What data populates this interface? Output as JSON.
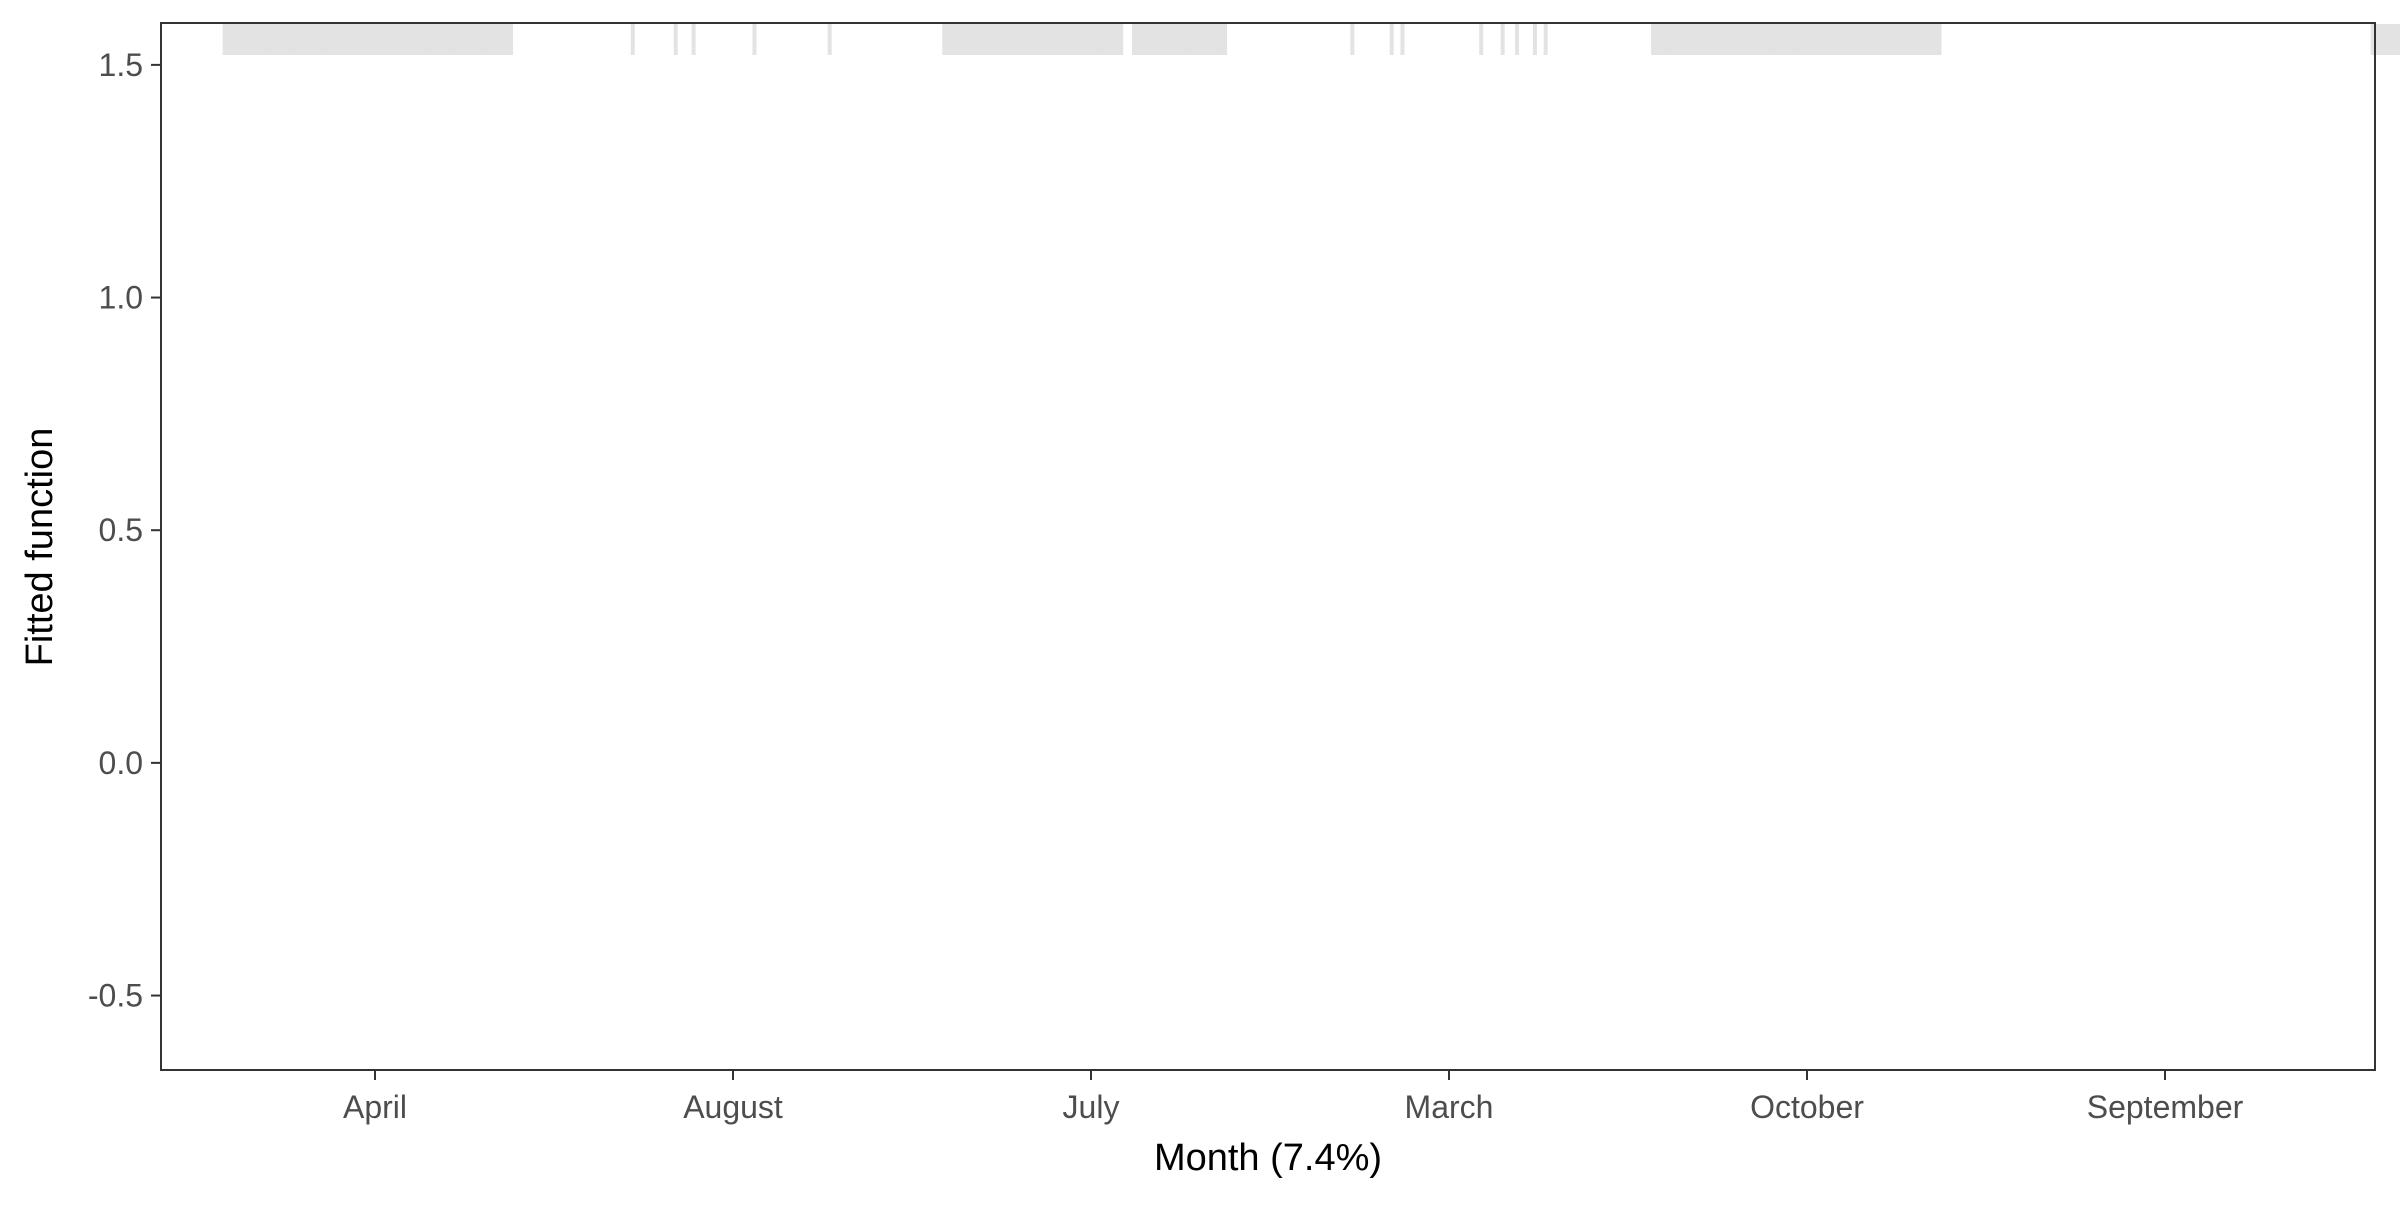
{
  "chart_data": {
    "type": "bar",
    "title": "",
    "xlabel": "Month  (7.4%)",
    "ylabel": "Fitted function",
    "categories": [
      "April",
      "August",
      "July",
      "March",
      "October",
      "September"
    ],
    "values": [
      0,
      0,
      0,
      0,
      0,
      0
    ],
    "ylim": [
      -0.66,
      1.59
    ],
    "y_ticks": [
      -0.5,
      0.0,
      0.5,
      1.0,
      1.5
    ],
    "y_tick_labels": [
      "-0.5",
      "0.0",
      "0.5",
      "1.0",
      "1.5"
    ],
    "grid": false,
    "legend": "none",
    "rug": {
      "color": "#e3e3e3",
      "dense_spans": [
        [
          0.58,
          1.38
        ],
        [
          2.59,
          3.09
        ],
        [
          3.12,
          3.38
        ],
        [
          4.57,
          5.37
        ],
        [
          6.58,
          7.38
        ]
      ],
      "ticks": [
        0.58,
        0.62,
        0.66,
        0.7,
        0.74,
        0.78,
        0.82,
        0.86,
        0.9,
        0.94,
        0.98,
        1.02,
        1.06,
        1.1,
        1.14,
        1.18,
        1.22,
        1.26,
        1.3,
        1.34,
        1.38,
        1.72,
        1.84,
        1.89,
        2.06,
        2.27,
        2.59,
        2.63,
        2.67,
        2.71,
        2.75,
        2.79,
        2.83,
        2.87,
        2.91,
        2.95,
        2.99,
        3.03,
        3.07,
        3.12,
        3.16,
        3.2,
        3.24,
        3.28,
        3.32,
        3.36,
        3.73,
        3.84,
        3.87,
        4.09,
        4.15,
        4.19,
        4.24,
        4.27,
        4.57,
        4.61,
        4.65,
        4.69,
        4.73,
        4.77,
        4.81,
        4.85,
        4.89,
        4.93,
        4.97,
        5.01,
        5.05,
        5.09,
        5.13,
        5.17,
        5.21,
        5.25,
        5.29,
        5.33,
        5.37,
        6.58,
        6.62,
        6.66,
        6.7,
        6.74,
        6.78,
        6.82,
        6.86,
        6.9,
        6.94,
        6.98,
        7.02,
        7.06,
        7.1,
        7.14,
        7.18,
        7.22,
        7.26,
        7.3,
        7.34,
        7.38
      ]
    }
  }
}
